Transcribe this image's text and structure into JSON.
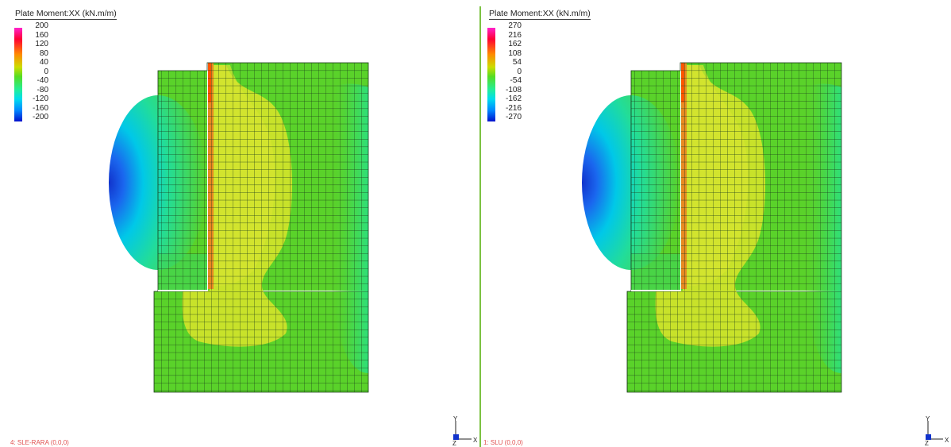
{
  "left_view": {
    "legend_title": "Plate Moment:XX  (kN.m/m)",
    "ticks": [
      "200",
      "160",
      "120",
      "80",
      "40",
      "0",
      "-40",
      "-80",
      "-120",
      "-160",
      "-200"
    ],
    "status": "4: SLE-RARA (0,0,0)"
  },
  "right_view": {
    "legend_title": "Plate Moment:XX  (kN.m/m)",
    "ticks": [
      "270",
      "216",
      "162",
      "108",
      "54",
      "0",
      "-54",
      "-108",
      "-162",
      "-216",
      "-270"
    ],
    "status": "1: SLU (0,0,0)"
  },
  "axis": {
    "y": "Y",
    "x": "X",
    "z": "Z"
  },
  "colors": {
    "mesh_line": "#1a3a1a",
    "base_green": "#5ad22a",
    "yellow_region": "#c8e22a",
    "cyan_region": "#22dd99",
    "blue_min": "#1133cc",
    "max_red": "#ff5500",
    "divider": "#7cc242",
    "status_text": "#e05050"
  }
}
